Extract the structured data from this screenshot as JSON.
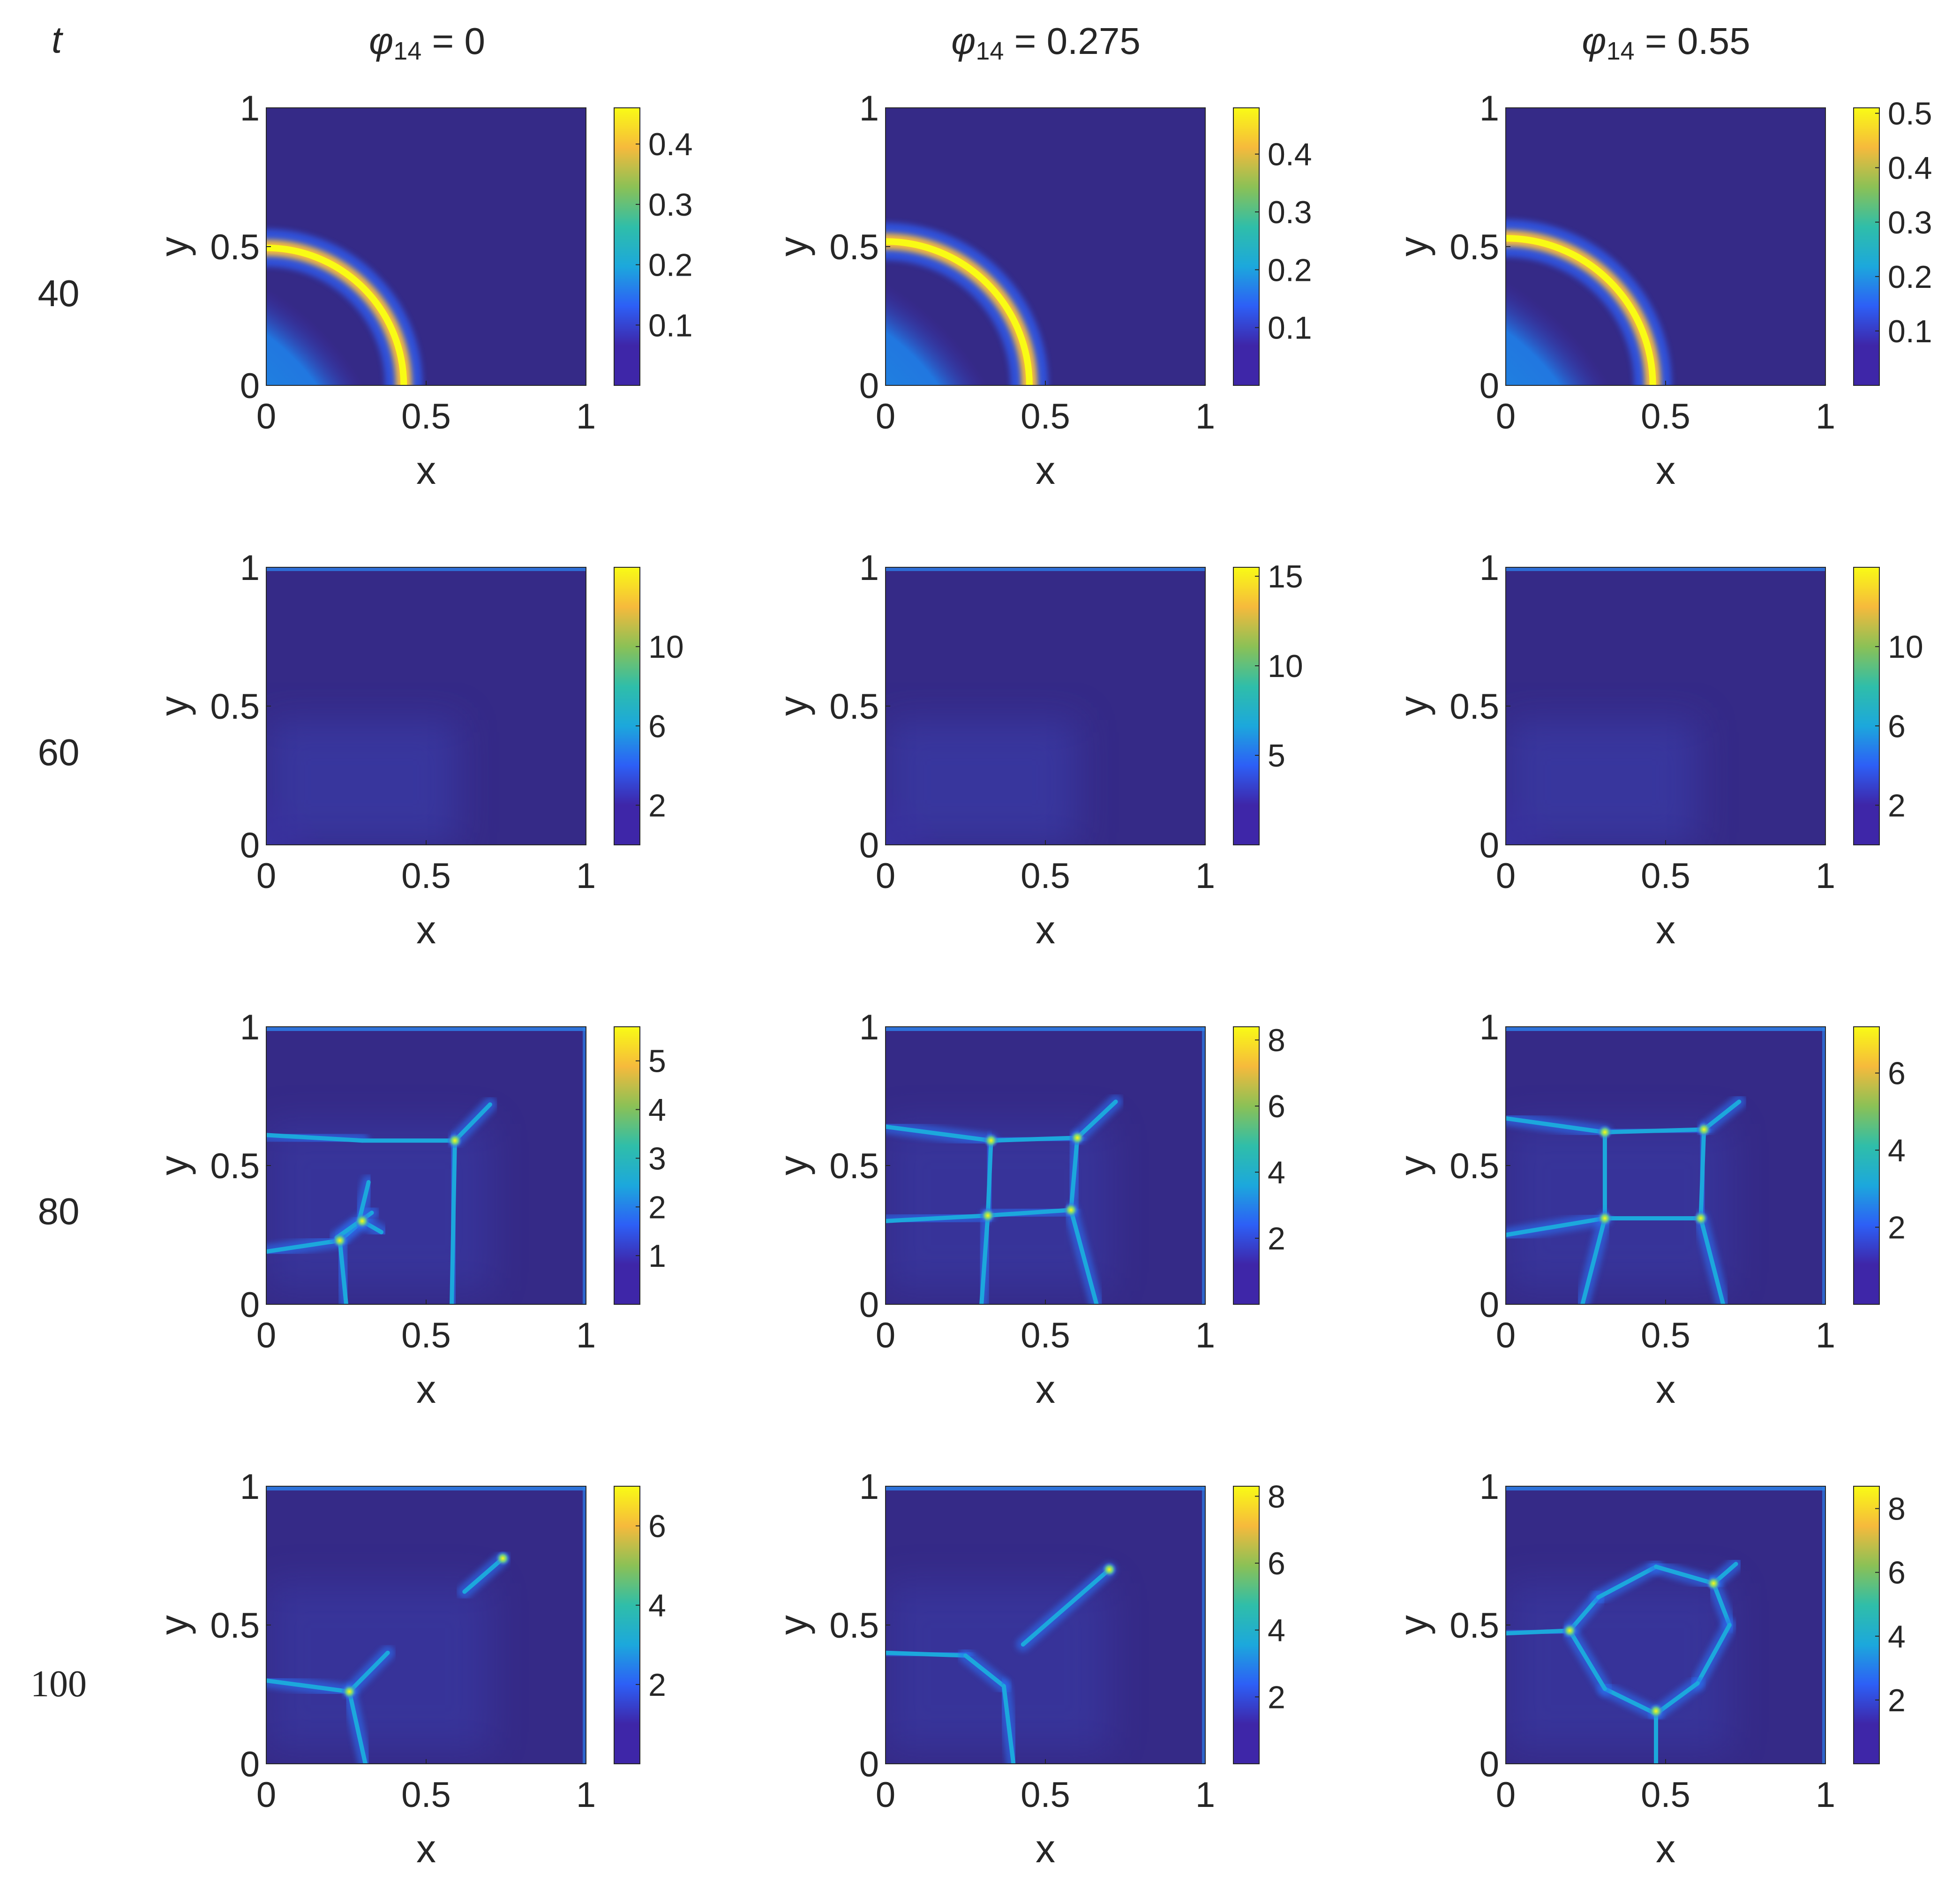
{
  "figure": {
    "time_header": "t",
    "column_headers": [
      {
        "symbol": "φ",
        "subscript": "14",
        "value_text": " = 0"
      },
      {
        "symbol": "φ",
        "subscript": "14",
        "value_text": " = 0.275"
      },
      {
        "symbol": "φ",
        "subscript": "14",
        "value_text": " = 0.55"
      }
    ],
    "row_labels": [
      "40",
      "60",
      "80",
      "100"
    ],
    "colormap": [
      "#3e26a8",
      "#3e26a8",
      "#2d5ff6",
      "#1ca8dc",
      "#2fbea9",
      "#8bc156",
      "#f6ba3c",
      "#f9fb15"
    ],
    "background_color": "#352a87"
  },
  "chart_data": [
    {
      "type": "heatmap",
      "row": 0,
      "col": 0,
      "time": "40",
      "phi14": "0",
      "pattern": "ring",
      "ring_radius": 0.43,
      "xlabel": "x",
      "ylabel": "y",
      "xlim": [
        0,
        1
      ],
      "ylim": [
        0,
        1
      ],
      "xticks": [
        "0",
        "0.5",
        "1"
      ],
      "yticks": [
        "0",
        "0.5",
        "1"
      ],
      "colorbar": {
        "min": 0,
        "max": 0.46,
        "ticks": [
          0.1,
          0.2,
          0.3,
          0.4
        ],
        "tick_labels": [
          "0.1",
          "0.2",
          "0.3",
          "0.4"
        ]
      }
    },
    {
      "type": "heatmap",
      "row": 0,
      "col": 1,
      "time": "40",
      "phi14": "0.275",
      "pattern": "ring",
      "ring_radius": 0.45,
      "xlabel": "x",
      "ylabel": "y",
      "xlim": [
        0,
        1
      ],
      "ylim": [
        0,
        1
      ],
      "xticks": [
        "0",
        "0.5",
        "1"
      ],
      "yticks": [
        "0",
        "0.5",
        "1"
      ],
      "colorbar": {
        "min": 0,
        "max": 0.48,
        "ticks": [
          0.1,
          0.2,
          0.3,
          0.4
        ],
        "tick_labels": [
          "0.1",
          "0.2",
          "0.3",
          "0.4"
        ]
      }
    },
    {
      "type": "heatmap",
      "row": 0,
      "col": 2,
      "time": "40",
      "phi14": "0.55",
      "pattern": "ring",
      "ring_radius": 0.46,
      "xlabel": "x",
      "ylabel": "y",
      "xlim": [
        0,
        1
      ],
      "ylim": [
        0,
        1
      ],
      "xticks": [
        "0",
        "0.5",
        "1"
      ],
      "yticks": [
        "0",
        "0.5",
        "1"
      ],
      "colorbar": {
        "min": 0,
        "max": 0.51,
        "ticks": [
          0.1,
          0.2,
          0.3,
          0.4,
          0.5
        ],
        "tick_labels": [
          "0.1",
          "0.2",
          "0.3",
          "0.4",
          "0.5"
        ]
      }
    },
    {
      "type": "heatmap",
      "row": 1,
      "col": 0,
      "time": "60",
      "phi14": "0",
      "pattern": "diffuse",
      "xlabel": "x",
      "ylabel": "y",
      "xlim": [
        0,
        1
      ],
      "ylim": [
        0,
        1
      ],
      "xticks": [
        "0",
        "0.5",
        "1"
      ],
      "yticks": [
        "0",
        "0.5",
        "1"
      ],
      "colorbar": {
        "min": 0,
        "max": 14,
        "ticks": [
          2,
          6,
          10
        ],
        "tick_labels": [
          "2",
          "6",
          "10"
        ]
      }
    },
    {
      "type": "heatmap",
      "row": 1,
      "col": 1,
      "time": "60",
      "phi14": "0.275",
      "pattern": "diffuse",
      "xlabel": "x",
      "ylabel": "y",
      "xlim": [
        0,
        1
      ],
      "ylim": [
        0,
        1
      ],
      "xticks": [
        "0",
        "0.5",
        "1"
      ],
      "yticks": [
        "0",
        "0.5",
        "1"
      ],
      "colorbar": {
        "min": 0,
        "max": 15.5,
        "ticks": [
          5,
          10,
          15
        ],
        "tick_labels": [
          "5",
          "10",
          "15"
        ]
      }
    },
    {
      "type": "heatmap",
      "row": 1,
      "col": 2,
      "time": "60",
      "phi14": "0.55",
      "pattern": "diffuse",
      "xlabel": "x",
      "ylabel": "y",
      "xlim": [
        0,
        1
      ],
      "ylim": [
        0,
        1
      ],
      "xticks": [
        "0",
        "0.5",
        "1"
      ],
      "yticks": [
        "0",
        "0.5",
        "1"
      ],
      "colorbar": {
        "min": 0,
        "max": 14,
        "ticks": [
          2,
          6,
          10
        ],
        "tick_labels": [
          "2",
          "6",
          "10"
        ]
      }
    },
    {
      "type": "heatmap",
      "row": 2,
      "col": 0,
      "time": "80",
      "phi14": "0",
      "pattern": "network",
      "segments": [
        [
          0,
          0.19,
          0.23,
          0.23
        ],
        [
          0.23,
          0.23,
          0.3,
          0.3
        ],
        [
          0.3,
          0.3,
          0.36,
          0.26
        ],
        [
          0.25,
          0,
          0.23,
          0.23
        ],
        [
          0.22,
          0.24,
          0.33,
          0.33
        ],
        [
          0.29,
          0.3,
          0.32,
          0.44
        ],
        [
          0,
          0.61,
          0.3,
          0.59
        ],
        [
          0.3,
          0.59,
          0.59,
          0.59
        ],
        [
          0.59,
          0.59,
          0.58,
          0
        ],
        [
          0.59,
          0.59,
          0.7,
          0.72
        ]
      ],
      "hotspots": [
        [
          0.59,
          0.59
        ],
        [
          0.3,
          0.3
        ],
        [
          0.23,
          0.23
        ]
      ],
      "xlabel": "x",
      "ylabel": "y",
      "xlim": [
        0,
        1
      ],
      "ylim": [
        0,
        1
      ],
      "xticks": [
        "0",
        "0.5",
        "1"
      ],
      "yticks": [
        "0",
        "0.5",
        "1"
      ],
      "colorbar": {
        "min": 0,
        "max": 5.7,
        "ticks": [
          1,
          2,
          3,
          4,
          5
        ],
        "tick_labels": [
          "1",
          "2",
          "3",
          "4",
          "5"
        ]
      }
    },
    {
      "type": "heatmap",
      "row": 2,
      "col": 1,
      "time": "80",
      "phi14": "0.275",
      "pattern": "network",
      "segments": [
        [
          0,
          0.64,
          0.33,
          0.59
        ],
        [
          0.33,
          0.59,
          0.6,
          0.6
        ],
        [
          0.33,
          0.59,
          0.32,
          0.32
        ],
        [
          0,
          0.3,
          0.32,
          0.32
        ],
        [
          0.32,
          0.32,
          0.58,
          0.34
        ],
        [
          0.6,
          0.6,
          0.58,
          0.34
        ],
        [
          0.32,
          0.32,
          0.3,
          0
        ],
        [
          0.58,
          0.34,
          0.66,
          0
        ],
        [
          0.6,
          0.6,
          0.72,
          0.73
        ]
      ],
      "hotspots": [
        [
          0.6,
          0.6
        ],
        [
          0.33,
          0.59
        ],
        [
          0.32,
          0.32
        ],
        [
          0.58,
          0.34
        ]
      ],
      "xlabel": "x",
      "ylabel": "y",
      "xlim": [
        0,
        1
      ],
      "ylim": [
        0,
        1
      ],
      "xticks": [
        "0",
        "0.5",
        "1"
      ],
      "yticks": [
        "0",
        "0.5",
        "1"
      ],
      "colorbar": {
        "min": 0,
        "max": 8.4,
        "ticks": [
          2,
          4,
          6,
          8
        ],
        "tick_labels": [
          "2",
          "4",
          "6",
          "8"
        ]
      }
    },
    {
      "type": "heatmap",
      "row": 2,
      "col": 2,
      "time": "80",
      "phi14": "0.55",
      "pattern": "network",
      "segments": [
        [
          0,
          0.67,
          0.31,
          0.62
        ],
        [
          0.31,
          0.62,
          0.62,
          0.63
        ],
        [
          0.31,
          0.62,
          0.31,
          0.31
        ],
        [
          0,
          0.25,
          0.31,
          0.31
        ],
        [
          0.31,
          0.31,
          0.61,
          0.31
        ],
        [
          0.62,
          0.63,
          0.61,
          0.31
        ],
        [
          0.31,
          0.31,
          0.24,
          0
        ],
        [
          0.61,
          0.31,
          0.68,
          0
        ],
        [
          0.62,
          0.63,
          0.73,
          0.73
        ]
      ],
      "hotspots": [
        [
          0.62,
          0.63
        ],
        [
          0.31,
          0.62
        ],
        [
          0.31,
          0.31
        ],
        [
          0.61,
          0.31
        ]
      ],
      "xlabel": "x",
      "ylabel": "y",
      "xlim": [
        0,
        1
      ],
      "ylim": [
        0,
        1
      ],
      "xticks": [
        "0",
        "0.5",
        "1"
      ],
      "yticks": [
        "0",
        "0.5",
        "1"
      ],
      "colorbar": {
        "min": 0,
        "max": 7.2,
        "ticks": [
          2,
          4,
          6
        ],
        "tick_labels": [
          "2",
          "4",
          "6"
        ]
      }
    },
    {
      "type": "heatmap",
      "row": 3,
      "col": 0,
      "time": "100",
      "phi14": "0",
      "pattern": "network",
      "segments": [
        [
          0,
          0.3,
          0.26,
          0.26
        ],
        [
          0.26,
          0.26,
          0.31,
          0
        ],
        [
          0.26,
          0.26,
          0.38,
          0.4
        ],
        [
          0.62,
          0.62,
          0.74,
          0.74
        ]
      ],
      "hotspots": [
        [
          0.26,
          0.26
        ],
        [
          0.74,
          0.74
        ]
      ],
      "xlabel": "x",
      "ylabel": "y",
      "xlim": [
        0,
        1
      ],
      "ylim": [
        0,
        1
      ],
      "xticks": [
        "0",
        "0.5",
        "1"
      ],
      "yticks": [
        "0",
        "0.5",
        "1"
      ],
      "colorbar": {
        "min": 0,
        "max": 7,
        "ticks": [
          2,
          4,
          6
        ],
        "tick_labels": [
          "2",
          "4",
          "6"
        ]
      }
    },
    {
      "type": "heatmap",
      "row": 3,
      "col": 1,
      "time": "100",
      "phi14": "0.275",
      "pattern": "network",
      "segments": [
        [
          0,
          0.4,
          0.25,
          0.39
        ],
        [
          0.25,
          0.39,
          0.37,
          0.28
        ],
        [
          0.37,
          0.28,
          0.4,
          0
        ],
        [
          0.43,
          0.43,
          0.7,
          0.7
        ]
      ],
      "hotspots": [
        [
          0.7,
          0.7
        ]
      ],
      "xlabel": "x",
      "ylabel": "y",
      "xlim": [
        0,
        1
      ],
      "ylim": [
        0,
        1
      ],
      "xticks": [
        "0",
        "0.5",
        "1"
      ],
      "yticks": [
        "0",
        "0.5",
        "1"
      ],
      "colorbar": {
        "min": 0,
        "max": 8.3,
        "ticks": [
          2,
          4,
          6,
          8
        ],
        "tick_labels": [
          "2",
          "4",
          "6",
          "8"
        ]
      }
    },
    {
      "type": "heatmap",
      "row": 3,
      "col": 2,
      "time": "100",
      "phi14": "0.55",
      "pattern": "network",
      "segments": [
        [
          0,
          0.47,
          0.2,
          0.48
        ],
        [
          0.2,
          0.48,
          0.29,
          0.6
        ],
        [
          0.29,
          0.6,
          0.47,
          0.71
        ],
        [
          0.47,
          0.71,
          0.65,
          0.65
        ],
        [
          0.65,
          0.65,
          0.7,
          0.5
        ],
        [
          0.7,
          0.5,
          0.6,
          0.29
        ],
        [
          0.6,
          0.29,
          0.47,
          0.18
        ],
        [
          0.47,
          0.18,
          0.31,
          0.27
        ],
        [
          0.31,
          0.27,
          0.2,
          0.48
        ],
        [
          0.47,
          0.18,
          0.47,
          0
        ],
        [
          0.65,
          0.65,
          0.72,
          0.72
        ]
      ],
      "hotspots": [
        [
          0.65,
          0.65
        ],
        [
          0.47,
          0.19
        ],
        [
          0.2,
          0.48
        ]
      ],
      "xlabel": "x",
      "ylabel": "y",
      "xlim": [
        0,
        1
      ],
      "ylim": [
        0,
        1
      ],
      "xticks": [
        "0",
        "0.5",
        "1"
      ],
      "yticks": [
        "0",
        "0.5",
        "1"
      ],
      "colorbar": {
        "min": 0,
        "max": 8.7,
        "ticks": [
          2,
          4,
          6,
          8
        ],
        "tick_labels": [
          "2",
          "4",
          "6",
          "8"
        ]
      }
    }
  ]
}
